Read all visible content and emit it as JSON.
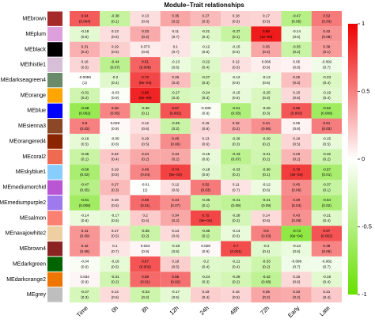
{
  "chart_data": {
    "type": "heatmap",
    "title": "Module–Trait relationships",
    "columns": [
      "Time",
      "0h",
      "8h",
      "12h",
      "24h",
      "48h",
      "72h",
      "Early",
      "Late"
    ],
    "rows": [
      "MEbrown",
      "MEplum",
      "MEblack",
      "MEthistle1",
      "MEdarkseagreen4",
      "MEorange",
      "MEblue",
      "MEsienna3",
      "MEorangered4",
      "MEcoral2",
      "MEskyblue1",
      "MEmediumorchid",
      "MEmediumpurple2",
      "MEsalmon",
      "MEnavajowhite2",
      "MEbrown4",
      "MEdarkgreen",
      "MEdarkorange2",
      "MEgrey"
    ],
    "row_colors": [
      "#a52a2a",
      "#dda0dd",
      "#000000",
      "#d8bfd8",
      "#698b69",
      "#ffa500",
      "#0000ff",
      "#8b4726",
      "#8b2500",
      "#ee6a50",
      "#87ceff",
      "#ba55d3",
      "#9f79ee",
      "#fa8072",
      "#eecfa1",
      "#8b2323",
      "#006400",
      "#ee7600",
      "#bebebe"
    ],
    "values": [
      [
        0.64,
        -0.38,
        0.13,
        0.35,
        0.27,
        0.18,
        0.17,
        -0.47,
        0.52
      ],
      [
        -0.18,
        0.13,
        0.33,
        0.11,
        -0.21,
        -0.37,
        0.89,
        -0.14,
        0.42
      ],
      [
        0.31,
        0.19,
        0.073,
        0.1,
        -0.12,
        -0.15,
        0.35,
        -0.35,
        0.39
      ],
      [
        0.16,
        -0.44,
        0.61,
        -0.13,
        -0.22,
        0.12,
        0.066,
        0.05,
        -0.092
      ],
      [
        -0.0059,
        -0.2,
        0.72,
        0.26,
        -0.27,
        -0.12,
        -0.13,
        0.25,
        -0.23
      ],
      [
        -0.31,
        -0.03,
        0.86,
        -0.27,
        -0.24,
        -0.15,
        -0.25,
        0.15,
        -0.19
      ],
      [
        -0.68,
        0.48,
        -0.36,
        0.67,
        -0.039,
        -0.51,
        -0.26,
        0.66,
        -0.62
      ],
      [
        0.5,
        0.029,
        0.12,
        -0.35,
        0.15,
        0.32,
        0.44,
        0.05,
        0.51
      ],
      [
        -0.16,
        -0.05,
        0.19,
        0.45,
        0.13,
        -0.26,
        -0.29,
        0.16,
        -0.15
      ],
      [
        -0.36,
        0.22,
        0.34,
        0.34,
        -0.15,
        -0.43,
        -0.31,
        0.29,
        -0.32
      ],
      [
        -0.56,
        0.19,
        0.48,
        0.74,
        -0.18,
        -0.33,
        -0.38,
        0.76,
        -0.57
      ],
      [
        -0.47,
        0.27,
        -0.01,
        0.12,
        0.52,
        0.11,
        -0.12,
        0.45,
        -0.37
      ],
      [
        -0.61,
        0.16,
        0.58,
        0.44,
        -0.36,
        -0.41,
        -0.41,
        0.49,
        -0.54
      ],
      [
        -0.14,
        -0.17,
        0.2,
        0.34,
        0.72,
        -0.28,
        0.14,
        0.43,
        -0.21
      ],
      [
        0.41,
        0.17,
        -0.35,
        0.14,
        -0.36,
        -0.14,
        0.5,
        -0.73,
        0.67
      ],
      [
        0.42,
        0.1,
        0.034,
        -0.18,
        0.028,
        0.7,
        -0.2,
        -0.13,
        0.48
      ],
      [
        -0.04,
        -0.16,
        0.67,
        0.19,
        -0.2,
        -0.21,
        -0.33,
        -0.096,
        -0.082
      ],
      [
        0.034,
        -0.31,
        0.59,
        0.56,
        -0.24,
        -0.29,
        -0.42,
        0.15,
        -0.19
      ],
      [
        -0.27,
        0.14,
        -0.33,
        -0.17,
        0.19,
        0.16,
        0.35,
        0.33,
        0.21
      ]
    ],
    "pvalue_labels": [
      [
        "(0.004)",
        "(0.1)",
        "(0.6)",
        "(0.2)",
        "(0.3)",
        "(0.5)",
        "(0.5)",
        "(0.05)",
        "(0.03)"
      ],
      [
        "(0.5)",
        "(0.6)",
        "(0.2)",
        "(0.7)",
        "(0.4)",
        "(0.1)",
        "(1e−06)",
        "(0.6)",
        "(0.08)"
      ],
      [
        "(0.2)",
        "(0.5)",
        "(0.8)",
        "(0.7)",
        "(0.6)",
        "(0.5)",
        "(0.2)",
        "(0.2)",
        "(0.1)"
      ],
      [
        "(0.5)",
        "(0.07)",
        "(0.008)",
        "(0.6)",
        "(0.4)",
        "(0.6)",
        "(0.8)",
        "(0.8)",
        "(0.7)"
      ],
      [
        "(1)",
        "(0.4)",
        "(8e−04)",
        "(0.3)",
        "(0.3)",
        "(0.6)",
        "(0.6)",
        "(0.3)",
        "(0.4)"
      ],
      [
        "(0.2)",
        "(0.9)",
        "(5e−06)",
        "(0.3)",
        "(0.3)",
        "(0.6)",
        "(0.3)",
        "(0.6)",
        "(0.4)"
      ],
      [
        "(0.002)",
        "(0.05)",
        "(0.1)",
        "(0.002)",
        "(0.9)",
        "(0.03)",
        "(0.3)",
        "(0.003)",
        "(0.006)"
      ],
      [
        "(0.03)",
        "(0.9)",
        "(0.6)",
        "(0.2)",
        "(0.6)",
        "(0.2)",
        "(0.06)",
        "(0.8)",
        "(0.03)"
      ],
      [
        "(0.5)",
        "(0.8)",
        "(0.5)",
        "(0.06)",
        "(0.6)",
        "(0.3)",
        "(0.2)",
        "(0.5)",
        "(0.5)"
      ],
      [
        "(0.1)",
        "(0.4)",
        "(0.2)",
        "(0.2)",
        "(0.6)",
        "(0.07)",
        "(0.2)",
        "(0.2)",
        "(0.2)"
      ],
      [
        "(0.02)",
        "(0.5)",
        "(0.04)",
        "(5e−04)",
        "(0.5)",
        "(0.2)",
        "(0.1)",
        "(3e−04)",
        "(0.01)"
      ],
      [
        "(0.05)",
        "(0.3)",
        "(1)",
        "(0.6)",
        "(0.03)",
        "(0.7)",
        "(0.6)",
        "(0.06)",
        "(0.1)"
      ],
      [
        "(0.008)",
        "(0.5)",
        "(0.01)",
        "(0.07)",
        "(0.1)",
        "(0.09)",
        "(0.09)",
        "(0.04)",
        "(0.02)"
      ],
      [
        "(0.6)",
        "(0.5)",
        "(0.4)",
        "(0.2)",
        "(8e−04)",
        "(0.3)",
        "(0.6)",
        "(0.08)",
        "(0.4)"
      ],
      [
        "(0.09)",
        "(0.5)",
        "(0.2)",
        "(0.6)",
        "(0.1)",
        "(0.6)",
        "(0.03)",
        "(6e−04)",
        "(0.002)"
      ],
      [
        "(0.08)",
        "(0.7)",
        "(0.9)",
        "(0.5)",
        "(0.9)",
        "(0.001)",
        "(0.4)",
        "(0.6)",
        "(0.05)"
      ],
      [
        "(0.9)",
        "(0.5)",
        "(0.002)",
        "(0.5)",
        "(0.4)",
        "(0.4)",
        "(0.2)",
        "(0.7)",
        "(0.7)"
      ],
      [
        "(0.9)",
        "(0.2)",
        "(0.01)",
        "(0.02)",
        "(0.3)",
        "(0.2)",
        "(0.08)",
        "(0.6)",
        "(0.4)"
      ],
      [
        "(0.3)",
        "(0.6)",
        "(0.2)",
        "(0.5)",
        "(0.4)",
        "(0.5)",
        "(0.2)",
        "(0.2)",
        "(0.4)"
      ]
    ],
    "zlim": [
      -1,
      1
    ],
    "zticks": [
      -1,
      -0.5,
      0,
      0.5,
      1
    ],
    "colors": [
      "#66e000",
      "#ffffff",
      "#ee0000"
    ]
  }
}
